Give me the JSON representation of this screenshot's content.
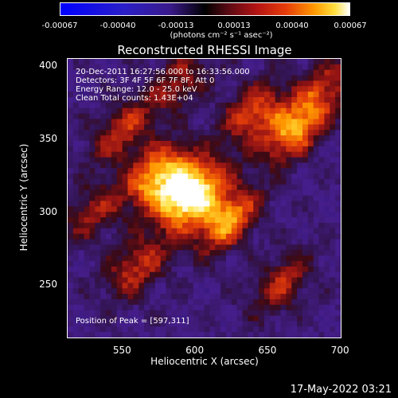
{
  "colorbar": {
    "tick_labels": [
      "-0.00067",
      "-0.00040",
      "-0.00013",
      "0.00013",
      "0.00040",
      "0.00067"
    ],
    "unit_label": "(photons cm⁻² s⁻¹ asec⁻²)"
  },
  "info": {
    "line1": "20-Dec-2011 16:27:56.000 to 16:33:56.000",
    "line2": "Detectors: 3F 4F 5F 6F 7F 8F, Att 0",
    "line3": "Energy Range: 12.0 - 25.0 keV",
    "line4": "Clean     Total counts: 1.43E+04",
    "peak": "Position of Peak = [597,311]"
  },
  "footer": "17-May-2022 03:21",
  "colors": {
    "background": "#000000",
    "foreground": "#ffffff",
    "negative": "#3a1a8a",
    "peak": "#ffffff"
  },
  "chart_data": {
    "type": "heatmap",
    "title": "Reconstructed RHESSI Image",
    "xlabel": "Heliocentric X (arcsec)",
    "ylabel": "Heliocentric Y (arcsec)",
    "xlim": [
      512,
      701
    ],
    "ylim": [
      213,
      405
    ],
    "xticks": [
      550,
      600,
      650,
      700
    ],
    "yticks": [
      250,
      300,
      350,
      400
    ],
    "xtick_labels": [
      "550",
      "600",
      "650",
      "700"
    ],
    "ytick_labels": [
      "250",
      "300",
      "350",
      "400"
    ],
    "colorbar_range": [
      -0.00067,
      0.00067
    ],
    "peak_position": [
      597,
      311
    ],
    "sources": [
      {
        "x": 597,
        "y": 311,
        "amplitude": 1.0
      },
      {
        "x": 575,
        "y": 325,
        "amplitude": 0.75
      },
      {
        "x": 622,
        "y": 294,
        "amplitude": 0.7
      },
      {
        "x": 668,
        "y": 355,
        "amplitude": 0.65
      },
      {
        "x": 640,
        "y": 368,
        "amplitude": 0.5
      },
      {
        "x": 550,
        "y": 355,
        "amplitude": 0.45
      },
      {
        "x": 560,
        "y": 262,
        "amplitude": 0.45
      },
      {
        "x": 660,
        "y": 250,
        "amplitude": 0.4
      },
      {
        "x": 530,
        "y": 300,
        "amplitude": 0.35
      },
      {
        "x": 590,
        "y": 390,
        "amplitude": 0.35
      },
      {
        "x": 690,
        "y": 385,
        "amplitude": 0.4
      }
    ]
  }
}
